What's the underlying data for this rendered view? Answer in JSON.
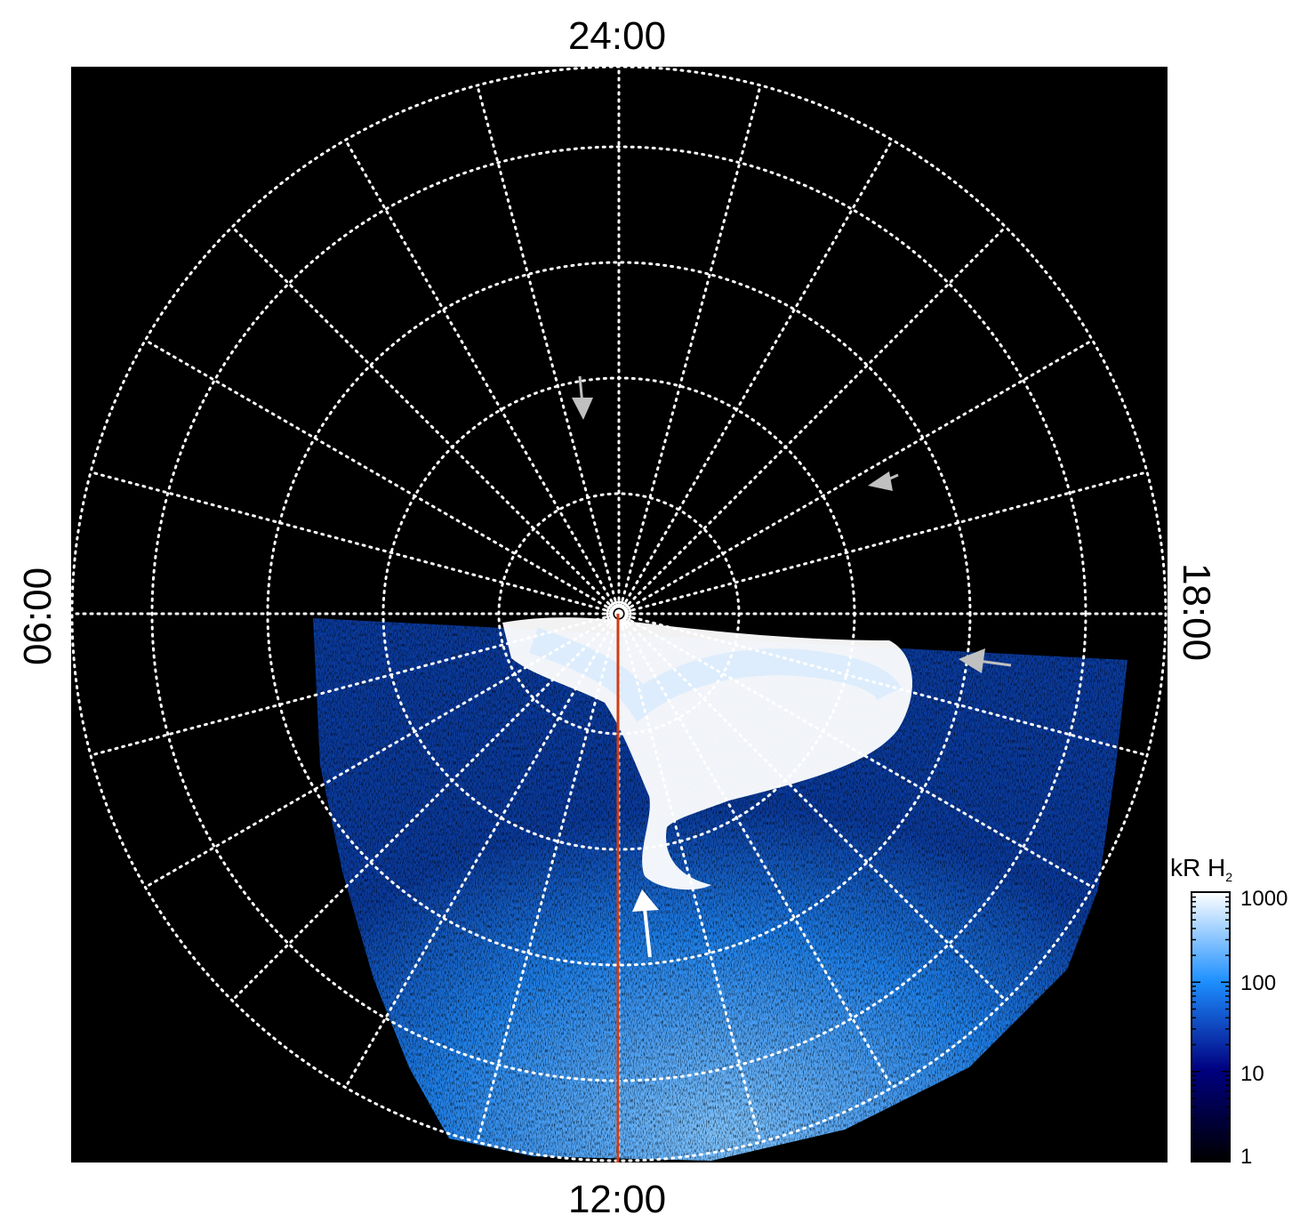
{
  "figure": {
    "title": "",
    "local_time_labels": {
      "top": "24:00",
      "bottom": "12:00",
      "left": "06:00",
      "right": "18:00"
    },
    "colorbar": {
      "label_main": "kR H",
      "label_sub": "2",
      "scale": "log",
      "ticks": [
        "1000",
        "100",
        "10",
        "1"
      ],
      "colors": [
        "#ffffff",
        "#1e90ff",
        "#000080",
        "#000000"
      ]
    },
    "overlay": {
      "meridian_line_color": "#d23c14",
      "grid_color": "#ffffff",
      "arrows": [
        {
          "color": "#c0c0c0"
        },
        {
          "color": "#c0c0c0"
        },
        {
          "color": "#c0c0c0"
        },
        {
          "color": "#ffffff"
        }
      ]
    },
    "colors": {
      "background": "#000000",
      "page": "#ffffff"
    }
  }
}
